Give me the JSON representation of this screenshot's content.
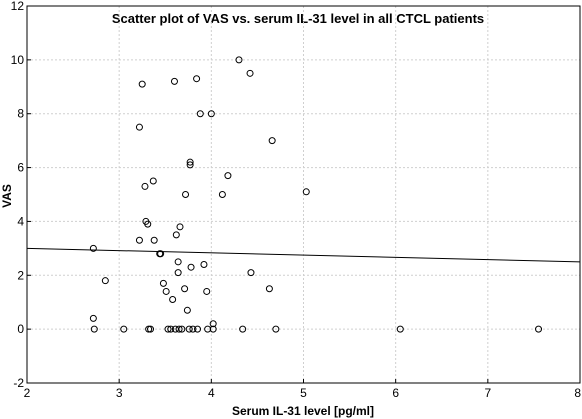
{
  "chart_data": {
    "type": "scatter",
    "title": "Scatter plot of VAS vs. serum IL-31 level in all CTCL patients",
    "xlabel": "Serum IL-31 level [pg/ml]",
    "ylabel": "VAS",
    "xlim": [
      2,
      8
    ],
    "ylim": [
      -2,
      12
    ],
    "xticks": [
      2,
      3,
      4,
      5,
      6,
      7,
      8
    ],
    "yticks": [
      -2,
      0,
      2,
      4,
      6,
      8,
      10,
      12
    ],
    "grid": true,
    "points": [
      {
        "x": 2.72,
        "y": 3.0
      },
      {
        "x": 2.72,
        "y": 0.4
      },
      {
        "x": 2.73,
        "y": 0.0
      },
      {
        "x": 2.85,
        "y": 1.8
      },
      {
        "x": 3.05,
        "y": 0.0
      },
      {
        "x": 3.22,
        "y": 7.5
      },
      {
        "x": 3.22,
        "y": 3.3
      },
      {
        "x": 3.25,
        "y": 9.1
      },
      {
        "x": 3.28,
        "y": 5.3
      },
      {
        "x": 3.29,
        "y": 4.0
      },
      {
        "x": 3.31,
        "y": 3.9
      },
      {
        "x": 3.32,
        "y": 0.0
      },
      {
        "x": 3.34,
        "y": 0.0
      },
      {
        "x": 3.37,
        "y": 5.5
      },
      {
        "x": 3.38,
        "y": 3.3
      },
      {
        "x": 3.44,
        "y": 2.8
      },
      {
        "x": 3.45,
        "y": 2.8
      },
      {
        "x": 3.48,
        "y": 1.7
      },
      {
        "x": 3.51,
        "y": 1.4
      },
      {
        "x": 3.53,
        "y": 0.0
      },
      {
        "x": 3.56,
        "y": 0.0
      },
      {
        "x": 3.58,
        "y": 1.1
      },
      {
        "x": 3.6,
        "y": 9.2
      },
      {
        "x": 3.61,
        "y": 0.0
      },
      {
        "x": 3.62,
        "y": 3.5
      },
      {
        "x": 3.64,
        "y": 2.5
      },
      {
        "x": 3.64,
        "y": 2.1
      },
      {
        "x": 3.65,
        "y": 0.0
      },
      {
        "x": 3.66,
        "y": 3.8
      },
      {
        "x": 3.68,
        "y": 0.0
      },
      {
        "x": 3.71,
        "y": 1.5
      },
      {
        "x": 3.72,
        "y": 5.0
      },
      {
        "x": 3.74,
        "y": 0.7
      },
      {
        "x": 3.76,
        "y": 0.0
      },
      {
        "x": 3.77,
        "y": 6.2
      },
      {
        "x": 3.77,
        "y": 6.1
      },
      {
        "x": 3.78,
        "y": 2.3
      },
      {
        "x": 3.8,
        "y": 0.0
      },
      {
        "x": 3.84,
        "y": 9.3
      },
      {
        "x": 3.85,
        "y": 0.0
      },
      {
        "x": 3.88,
        "y": 8.0
      },
      {
        "x": 3.92,
        "y": 2.4
      },
      {
        "x": 3.95,
        "y": 1.4
      },
      {
        "x": 3.96,
        "y": 0.0
      },
      {
        "x": 4.0,
        "y": 8.0
      },
      {
        "x": 4.02,
        "y": 0.2
      },
      {
        "x": 4.02,
        "y": 0.0
      },
      {
        "x": 4.12,
        "y": 5.0
      },
      {
        "x": 4.18,
        "y": 5.7
      },
      {
        "x": 4.3,
        "y": 10.0
      },
      {
        "x": 4.34,
        "y": 0.0
      },
      {
        "x": 4.42,
        "y": 9.5
      },
      {
        "x": 4.43,
        "y": 2.1
      },
      {
        "x": 4.63,
        "y": 1.5
      },
      {
        "x": 4.66,
        "y": 7.0
      },
      {
        "x": 4.7,
        "y": 0.0
      },
      {
        "x": 5.03,
        "y": 5.1
      },
      {
        "x": 6.05,
        "y": 0.0
      },
      {
        "x": 7.55,
        "y": 0.0
      }
    ],
    "regression_line": {
      "x": [
        2,
        8
      ],
      "y": [
        3.0,
        2.5
      ]
    }
  }
}
